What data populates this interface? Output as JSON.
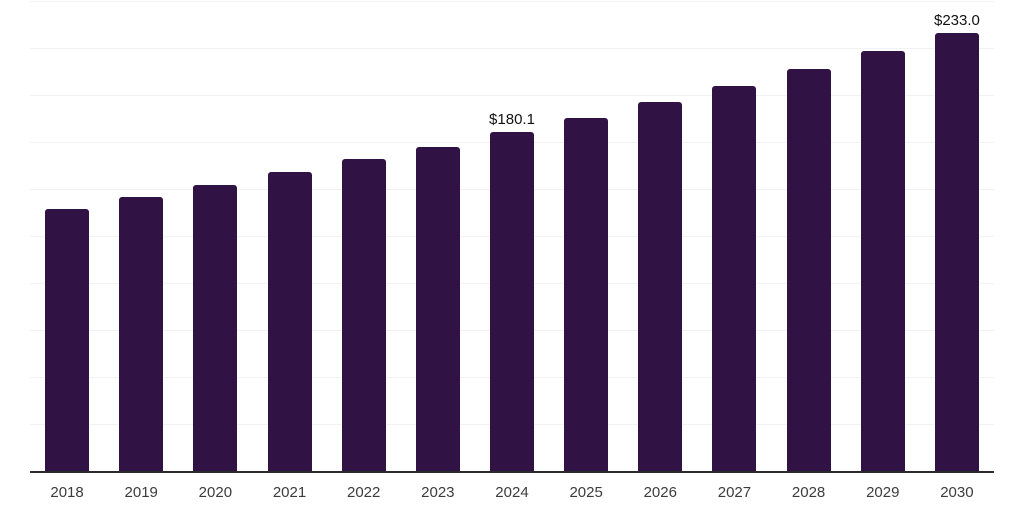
{
  "chart_data": {
    "type": "bar",
    "title": "",
    "xlabel": "",
    "ylabel": "",
    "categories": [
      "2018",
      "2019",
      "2020",
      "2021",
      "2022",
      "2023",
      "2024",
      "2025",
      "2026",
      "2027",
      "2028",
      "2029",
      "2030"
    ],
    "values": [
      139.4,
      145.8,
      152.4,
      159.0,
      166.0,
      172.6,
      180.1,
      188.0,
      196.3,
      205.0,
      214.0,
      223.3,
      233.0
    ],
    "value_labels": {
      "2024": "$180.1",
      "2030": "$233.0"
    },
    "ylim": [
      0,
      250
    ],
    "gridline_step": 25,
    "grid": "horizontal",
    "legend": "none",
    "colors": {
      "bar": "#301245",
      "axis_line": "#2b2b2b",
      "gridline": "#f2f2f2",
      "tick_label": "#3c3c3c",
      "value_label": "#111111",
      "background": "#ffffff"
    }
  }
}
